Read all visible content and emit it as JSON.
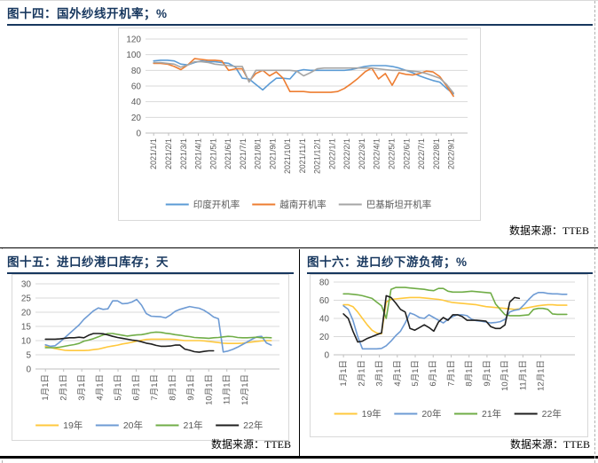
{
  "figures": [
    {
      "title": "图十四：国外纱线开机率；%",
      "source": "数据来源：TTEB"
    },
    {
      "title": "图十五：进口纱港口库存；天",
      "source": "数据来源：TTEB"
    },
    {
      "title": "图十六：进口纱下游负荷；%",
      "source": "数据来源：TTEB"
    }
  ],
  "chart_data": [
    {
      "type": "line",
      "title": "国外纱线开机率",
      "ylabel": "%",
      "ylim": [
        0,
        120
      ],
      "yticks": [
        0,
        20,
        40,
        60,
        80,
        100,
        120
      ],
      "grid": true,
      "legend_position": "bottom",
      "x_labels": [
        "2021/1/1",
        "2021/2/1",
        "2021/3/1",
        "2021/4/1",
        "2021/5/1",
        "2021/6/1",
        "2021/7/1",
        "2021/8/1",
        "2021/9/1",
        "2021/10/1",
        "2021/11/1",
        "2021/12/1",
        "2022/1/1",
        "2022/2/1",
        "2022/3/1",
        "2022/4/1",
        "2022/5/1",
        "2022/6/1",
        "2022/7/1",
        "2022/8/1",
        "2022/9/1"
      ],
      "x_label_start": 0,
      "xlim": [
        -0.55,
        21.1
      ],
      "series": [
        {
          "name": "印度开机率",
          "color": "#5B9BD5",
          "x_start": 0,
          "x_step": 0.458,
          "values": [
            92,
            93,
            93,
            92,
            88,
            87,
            90,
            92,
            91,
            91,
            90,
            89,
            84,
            70,
            69,
            62,
            55,
            63,
            70,
            70,
            69,
            79,
            81,
            80,
            80,
            80,
            80,
            80,
            80,
            81,
            83,
            85,
            86,
            86,
            86,
            85,
            83,
            80,
            77,
            73,
            70,
            67,
            65,
            57,
            50
          ]
        },
        {
          "name": "越南开机率",
          "color": "#ED7D31",
          "x_start": 0,
          "x_step": 0.458,
          "values": [
            89,
            89,
            88,
            85,
            81,
            87,
            95,
            94,
            93,
            93,
            92,
            80,
            82,
            82,
            66,
            76,
            80,
            73,
            78,
            70,
            53,
            53,
            53,
            52,
            52,
            52,
            52,
            53,
            57,
            63,
            70,
            78,
            83,
            69,
            76,
            61,
            77,
            75,
            74,
            76,
            79,
            78,
            72,
            60,
            47
          ]
        },
        {
          "name": "巴基斯坦开机率",
          "color": "#A5A5A5",
          "x_start": 0,
          "x_step": 0.458,
          "values": [
            90,
            90,
            89,
            88,
            84,
            87,
            91,
            91,
            90,
            88,
            87,
            86,
            85,
            85,
            65,
            80,
            80,
            80,
            80,
            80,
            80,
            79,
            73,
            77,
            82,
            83,
            83,
            83,
            83,
            83,
            83,
            83,
            83,
            82,
            81,
            80,
            80,
            80,
            79,
            78,
            76,
            73,
            70,
            62,
            51
          ]
        }
      ]
    },
    {
      "type": "line",
      "title": "进口纱港口库存",
      "ylabel": "天",
      "ylim": [
        0,
        30
      ],
      "yticks": [
        0,
        5,
        10,
        15,
        20,
        25,
        30
      ],
      "grid": true,
      "legend_position": "bottom",
      "x_labels": [
        "1月1日",
        "2月1日",
        "3月1日",
        "4月1日",
        "5月1日",
        "6月1日",
        "7月1日",
        "8月1日",
        "9月1日",
        "10月1日",
        "11月1日",
        "12月1日"
      ],
      "x_label_start": 1,
      "xlim": [
        0.45,
        13.9
      ],
      "series": [
        {
          "name": "19年",
          "color": "#FFC83D",
          "x_start": 1,
          "x_step": 0.2648,
          "values": [
            8,
            7.6,
            7.2,
            6.9,
            6.6,
            6.5,
            6.5,
            6.5,
            6.5,
            6.6,
            6.8,
            7,
            7.4,
            7.8,
            8.1,
            8.4,
            8.8,
            9.1,
            9.4,
            9.8,
            10.1,
            10.4,
            10.5,
            10.5,
            10.5,
            10.5,
            10.5,
            10.4,
            10.2,
            10,
            10,
            10,
            10,
            9.9,
            9.7,
            9.5,
            9.3,
            9.1,
            9,
            9,
            9,
            9.1,
            9.3,
            9.5,
            9.7,
            9.9,
            10,
            10
          ]
        },
        {
          "name": "20年",
          "color": "#6E9BD4",
          "x_start": 1,
          "x_step": 0.2648,
          "values": [
            8.5,
            8,
            8.2,
            9.5,
            11,
            12.5,
            14,
            15.5,
            17.5,
            19,
            20.5,
            21.5,
            21,
            21.2,
            24,
            24,
            23,
            23.1,
            23.6,
            24.5,
            22.5,
            19.5,
            18.6,
            18.5,
            18.4,
            18,
            19,
            20.3,
            21,
            21.5,
            22,
            21.7,
            21.4,
            20.7,
            19.6,
            18.3,
            17.7,
            6,
            6.3,
            6.9,
            7.7,
            8.6,
            9.5,
            10.5,
            11.3,
            11.5,
            9.2,
            8.4
          ]
        },
        {
          "name": "21年",
          "color": "#70AD47",
          "x_start": 1,
          "x_step": 0.2648,
          "values": [
            7.5,
            7.5,
            7.5,
            7.7,
            8,
            8.3,
            8.6,
            9,
            9.8,
            10.2,
            10.7,
            11.3,
            12,
            12.5,
            12.5,
            12.2,
            11.9,
            11.6,
            11.8,
            12,
            12.1,
            12.4,
            12.8,
            13,
            12.9,
            12.6,
            12.4,
            12.1,
            11.9,
            11.6,
            11.4,
            11.1,
            11,
            10.9,
            10.8,
            11,
            11.1,
            11.3,
            11.5,
            11.4,
            11.1,
            11,
            11,
            11.1,
            11.2,
            11,
            11.1,
            11
          ]
        },
        {
          "name": "22年",
          "color": "#1F1F1F",
          "x_start": 1,
          "x_step": 0.2648,
          "values": [
            10.5,
            10.5,
            10.5,
            10.6,
            10.8,
            11,
            11,
            11.2,
            11,
            11.9,
            12.5,
            12.5,
            12.4,
            12,
            11.5,
            11.1,
            10.8,
            10.5,
            10.2,
            10,
            9.6,
            9.1,
            8.8,
            8.3,
            8,
            8,
            8.1,
            8.4,
            8.4,
            7,
            6.6,
            6.1,
            5.9,
            6.2,
            6.4,
            6.4
          ]
        }
      ]
    },
    {
      "type": "line",
      "title": "进口纱下游负荷",
      "ylabel": "%",
      "ylim": [
        0,
        80
      ],
      "yticks": [
        0,
        20,
        40,
        60,
        80
      ],
      "grid": true,
      "legend_position": "bottom",
      "x_labels": [
        "1月1日",
        "2月1日",
        "3月1日",
        "4月1日",
        "5月1日",
        "6月1日",
        "7月1日",
        "8月1日",
        "9月1日",
        "10月1日",
        "11月1日",
        "12月1日"
      ],
      "x_label_start": 1,
      "xlim": [
        0.45,
        13.9
      ],
      "series": [
        {
          "name": "19年",
          "color": "#FFC83D",
          "x_start": 1,
          "x_step": 0.2648,
          "values": [
            55,
            55,
            53,
            47,
            40,
            33,
            27,
            24,
            23,
            58,
            61,
            61.5,
            62,
            62.5,
            63,
            63,
            63,
            62.5,
            62,
            61.5,
            61,
            60,
            58.5,
            57.5,
            57,
            56.5,
            56,
            55.5,
            55,
            54,
            53,
            52.5,
            52,
            51.5,
            51,
            50.5,
            50,
            50.5,
            51,
            52,
            53,
            54,
            54.5,
            55,
            55,
            54.5,
            54.5,
            54.5
          ]
        },
        {
          "name": "20年",
          "color": "#6E9BD4",
          "x_start": 1,
          "x_step": 0.2648,
          "values": [
            54,
            50,
            38,
            20,
            6.5,
            6.5,
            6.5,
            6.5,
            7,
            10,
            15,
            21,
            26,
            35,
            46,
            44,
            41,
            40,
            44,
            41,
            38,
            35,
            39,
            42,
            44,
            44,
            43,
            39,
            37.5,
            37,
            36,
            35,
            35.5,
            36.5,
            39,
            47,
            49,
            50,
            55,
            61,
            66,
            68.5,
            68.5,
            67.5,
            67,
            67,
            66.5,
            66.5
          ]
        },
        {
          "name": "21年",
          "color": "#70AD47",
          "x_start": 1,
          "x_step": 0.2648,
          "values": [
            67,
            67,
            66.5,
            66,
            65,
            63.5,
            62,
            58,
            54,
            40,
            72,
            74,
            74,
            74,
            73.5,
            73,
            72.5,
            72,
            71,
            70.5,
            73,
            73,
            70,
            69,
            69,
            69,
            69.5,
            70,
            69.5,
            69,
            68.5,
            68,
            56,
            50,
            44,
            43,
            43,
            43,
            43.5,
            44,
            50,
            51,
            51,
            50,
            45,
            44.5,
            44.5,
            44.5
          ]
        },
        {
          "name": "22年",
          "color": "#1F1F1F",
          "x_start": 1,
          "x_step": 0.2648,
          "values": [
            45,
            40,
            26,
            14,
            15,
            18,
            20,
            22,
            24,
            65,
            63,
            57,
            50,
            47,
            29,
            27,
            30,
            33,
            30,
            26,
            36,
            41,
            38,
            44,
            44,
            42,
            38,
            38,
            38,
            37.5,
            37,
            31,
            29,
            29,
            33,
            58,
            63,
            62
          ]
        }
      ]
    }
  ]
}
